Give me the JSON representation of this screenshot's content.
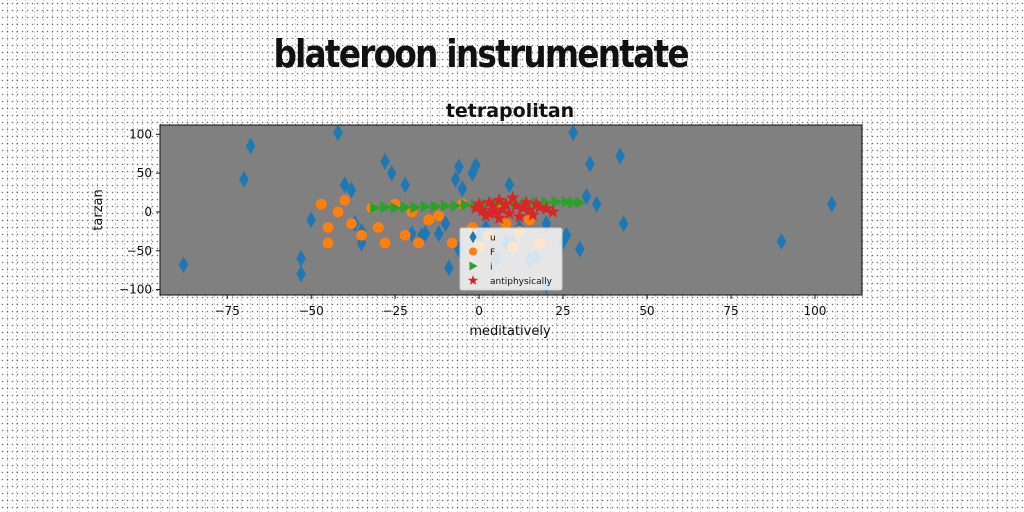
{
  "suptitle": "blateroon instrumentate",
  "colors": {
    "plot_bg": "#808080",
    "u": "#1f77b4",
    "F": "#ff7f0e",
    "i": "#2ca02c",
    "antiphysically": "#d62728"
  },
  "chart_data": {
    "type": "scatter",
    "title": "tetrapolitan",
    "xlabel": "meditatively",
    "ylabel": "tarzan",
    "xlim": [
      -95,
      114
    ],
    "ylim": [
      -107,
      112
    ],
    "xticks": [
      -75,
      -50,
      -25,
      0,
      25,
      50,
      75,
      100
    ],
    "yticks": [
      -100,
      -50,
      0,
      50,
      100
    ],
    "grid": false,
    "legend_loc": "lower center",
    "series": [
      {
        "name": "u",
        "marker": "diamond",
        "points": [
          [
            -88,
            -68
          ],
          [
            -70,
            42
          ],
          [
            -68,
            85
          ],
          [
            -53,
            -60
          ],
          [
            -53,
            -80
          ],
          [
            -50,
            -10
          ],
          [
            -42,
            102
          ],
          [
            -40,
            35
          ],
          [
            -38,
            28
          ],
          [
            -37,
            -15
          ],
          [
            -35,
            -25
          ],
          [
            -35,
            -40
          ],
          [
            -28,
            65
          ],
          [
            -26,
            50
          ],
          [
            -22,
            35
          ],
          [
            -20,
            -28
          ],
          [
            -17,
            -30
          ],
          [
            -16,
            -28
          ],
          [
            -12,
            -28
          ],
          [
            -10,
            -15
          ],
          [
            -9,
            -72
          ],
          [
            -7,
            42
          ],
          [
            -6,
            58
          ],
          [
            -6,
            -48
          ],
          [
            -5,
            30
          ],
          [
            -2,
            50
          ],
          [
            -1,
            60
          ],
          [
            0,
            -30
          ],
          [
            2,
            -20
          ],
          [
            5,
            -60
          ],
          [
            8,
            -40
          ],
          [
            9,
            35
          ],
          [
            10,
            -40
          ],
          [
            12,
            -20
          ],
          [
            15,
            -62
          ],
          [
            17,
            -58
          ],
          [
            20,
            -95
          ],
          [
            20,
            -15
          ],
          [
            25,
            -38
          ],
          [
            26,
            -30
          ],
          [
            28,
            102
          ],
          [
            30,
            -48
          ],
          [
            32,
            20
          ],
          [
            33,
            62
          ],
          [
            35,
            10
          ],
          [
            42,
            72
          ],
          [
            43,
            -15
          ],
          [
            90,
            -38
          ],
          [
            105,
            10
          ]
        ]
      },
      {
        "name": "F",
        "marker": "circle",
        "points": [
          [
            -47,
            10
          ],
          [
            -45,
            -20
          ],
          [
            -45,
            -40
          ],
          [
            -42,
            0
          ],
          [
            -40,
            15
          ],
          [
            -38,
            -15
          ],
          [
            -35,
            -30
          ],
          [
            -32,
            5
          ],
          [
            -30,
            -20
          ],
          [
            -28,
            -40
          ],
          [
            -25,
            10
          ],
          [
            -22,
            -30
          ],
          [
            -20,
            0
          ],
          [
            -18,
            -40
          ],
          [
            -15,
            -10
          ],
          [
            -12,
            -5
          ],
          [
            -8,
            -40
          ],
          [
            -5,
            10
          ],
          [
            -2,
            -20
          ],
          [
            0,
            -45
          ],
          [
            3,
            -30
          ],
          [
            5,
            5
          ],
          [
            8,
            -15
          ],
          [
            10,
            -45
          ],
          [
            12,
            -25
          ],
          [
            15,
            -10
          ],
          [
            18,
            -40
          ]
        ]
      },
      {
        "name": "i",
        "marker": "triangle-right",
        "points": [
          [
            -31,
            5
          ],
          [
            -28,
            6
          ],
          [
            -25,
            5
          ],
          [
            -22,
            6
          ],
          [
            -19,
            6
          ],
          [
            -16,
            7
          ],
          [
            -13,
            7
          ],
          [
            -10,
            8
          ],
          [
            -7,
            8
          ],
          [
            -4,
            9
          ],
          [
            -1,
            9
          ],
          [
            2,
            10
          ],
          [
            5,
            10
          ],
          [
            8,
            10
          ],
          [
            11,
            11
          ],
          [
            14,
            11
          ],
          [
            17,
            12
          ],
          [
            20,
            12
          ],
          [
            23,
            13
          ],
          [
            26,
            13
          ],
          [
            28,
            12
          ],
          [
            30,
            12
          ]
        ]
      },
      {
        "name": "antiphysically",
        "marker": "star",
        "points": [
          [
            -1,
            5
          ],
          [
            0,
            10
          ],
          [
            1,
            2
          ],
          [
            2,
            -5
          ],
          [
            3,
            12
          ],
          [
            4,
            8
          ],
          [
            5,
            0
          ],
          [
            6,
            15
          ],
          [
            7,
            3
          ],
          [
            8,
            10
          ],
          [
            9,
            -2
          ],
          [
            10,
            18
          ],
          [
            11,
            8
          ],
          [
            12,
            -6
          ],
          [
            13,
            5
          ],
          [
            14,
            12
          ],
          [
            15,
            2
          ],
          [
            16,
            -4
          ],
          [
            17,
            10
          ],
          [
            18,
            6
          ],
          [
            20,
            4
          ],
          [
            22,
            0
          ],
          [
            6,
            -8
          ],
          [
            3,
            -2
          ]
        ]
      }
    ]
  }
}
